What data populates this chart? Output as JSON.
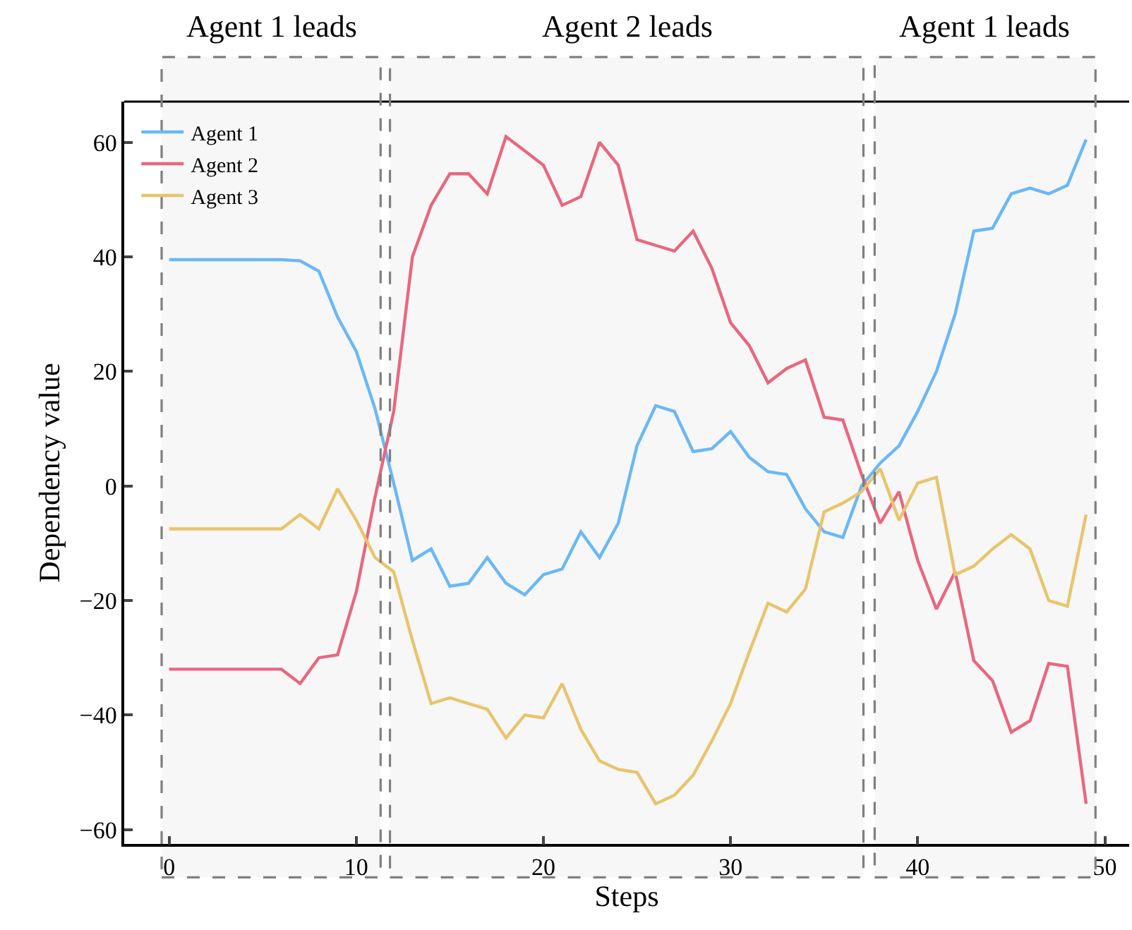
{
  "chart_data": {
    "type": "line",
    "xlabel": "Steps",
    "ylabel": "Dependency value",
    "x": [
      0,
      1,
      2,
      3,
      4,
      5,
      6,
      7,
      8,
      9,
      10,
      11,
      12,
      13,
      14,
      15,
      16,
      17,
      18,
      19,
      20,
      21,
      22,
      23,
      24,
      25,
      26,
      27,
      28,
      29,
      30,
      31,
      32,
      33,
      34,
      35,
      36,
      37,
      38,
      39,
      40,
      41,
      42,
      43,
      44,
      45,
      46,
      47,
      48,
      49
    ],
    "series": [
      {
        "name": "Agent 1",
        "color": "#6ab8f7",
        "values": [
          39.5,
          39.5,
          39.5,
          39.5,
          39.5,
          39.5,
          39.5,
          39.3,
          37.5,
          29.5,
          23.5,
          13.5,
          0.5,
          -13,
          -11,
          -17.5,
          -17,
          -12.5,
          -17,
          -19,
          -15.5,
          -14.5,
          -8,
          -12.5,
          -6.5,
          7,
          14,
          13,
          6,
          6.5,
          9.5,
          5,
          2.5,
          2,
          -4,
          -8,
          -9,
          0,
          4,
          7,
          13,
          20,
          30,
          44.5,
          45,
          51,
          52,
          51,
          52.5,
          60.5
        ]
      },
      {
        "name": "Agent 2",
        "color": "#e8677f",
        "values": [
          -32,
          -32,
          -32,
          -32,
          -32,
          -32,
          -32,
          -34.5,
          -30,
          -29.5,
          -18.5,
          -2,
          13,
          40,
          49,
          54.5,
          54.5,
          51,
          61,
          58.5,
          56,
          49,
          50.5,
          60,
          56,
          43,
          42,
          41,
          44.5,
          38,
          28.5,
          24.5,
          18,
          20.5,
          22,
          12,
          11.5,
          2,
          -6.5,
          -1,
          -13,
          -21.5,
          -15,
          -30.5,
          -34,
          -43,
          -41,
          -31,
          -31.5,
          -55.5
        ]
      },
      {
        "name": "Agent 3",
        "color": "#e8c46b",
        "values": [
          -7.5,
          -7.5,
          -7.5,
          -7.5,
          -7.5,
          -7.5,
          -7.5,
          -5,
          -7.5,
          -0.5,
          -6,
          -12.5,
          -15,
          -27,
          -38,
          -37,
          -38,
          -39,
          -44,
          -40,
          -40.5,
          -34.5,
          -42.5,
          -48,
          -49.5,
          -50,
          -55.5,
          -54,
          -50.5,
          -44.5,
          -38,
          -29,
          -20.5,
          -22,
          -18,
          -4.5,
          -3,
          -1,
          3,
          -6,
          0.5,
          1.5,
          -15.5,
          -14,
          -11,
          -8.5,
          -11,
          -20,
          -21,
          -5
        ]
      }
    ],
    "xlim": [
      -2.4,
      51.3
    ],
    "xticks": [
      0,
      10,
      20,
      30,
      40,
      50
    ],
    "ylim": [
      -62.5,
      67.1
    ],
    "yticks": [
      -60,
      -40,
      -20,
      0,
      20,
      40,
      60
    ],
    "grid": false,
    "legend": "top left",
    "marker": "none",
    "line_style": "solid",
    "bands": [
      {
        "axis": "x",
        "from": -0.4,
        "to": 11.3,
        "label": "Agent 1 leads",
        "color": "#808080"
      },
      {
        "axis": "x",
        "from": 11.8,
        "to": 37.1,
        "label": "Agent 2 leads",
        "color": "#808080"
      },
      {
        "axis": "x",
        "from": 37.7,
        "to": 49.5,
        "label": "Agent 1 leads",
        "color": "#808080"
      }
    ]
  }
}
